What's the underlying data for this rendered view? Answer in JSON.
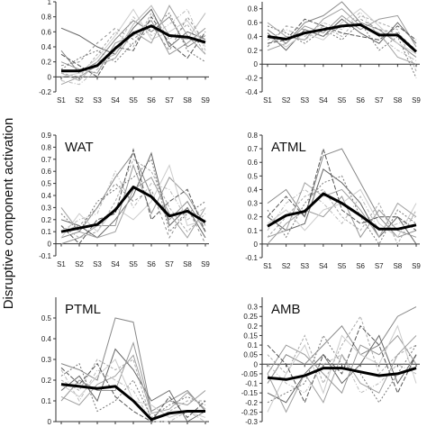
{
  "ylabel": "Disruptive component activation",
  "chart_data": [
    {
      "type": "line",
      "panel": "top-left",
      "title": "",
      "x": [
        "S1",
        "S2",
        "S3",
        "S4",
        "S5",
        "S6",
        "S7",
        "S8",
        "S9"
      ],
      "ylim": [
        -0.2,
        1.0
      ],
      "yticks": [
        "-0.2",
        "0",
        "0.2",
        "0.4",
        "0.6",
        "0.8",
        "1"
      ],
      "mean": [
        0.08,
        0.08,
        0.15,
        0.38,
        0.58,
        0.68,
        0.55,
        0.53,
        0.46
      ],
      "subjects": [
        [
          0.35,
          0.05,
          0.2,
          0.5,
          0.75,
          0.6,
          0.8,
          0.4,
          0.55
        ],
        [
          0.05,
          0.0,
          0.3,
          0.6,
          0.4,
          0.85,
          0.5,
          0.7,
          0.3
        ],
        [
          0.65,
          0.55,
          0.4,
          0.3,
          0.65,
          0.9,
          0.4,
          0.6,
          0.5
        ],
        [
          -0.05,
          -0.1,
          0.1,
          0.35,
          0.8,
          0.55,
          0.7,
          0.9,
          0.35
        ],
        [
          0.2,
          0.1,
          0.05,
          0.45,
          0.55,
          0.75,
          0.3,
          0.45,
          0.65
        ],
        [
          0.1,
          0.25,
          0.35,
          0.2,
          0.45,
          0.65,
          0.85,
          0.35,
          0.2
        ],
        [
          0.0,
          0.05,
          0.25,
          0.55,
          0.9,
          0.5,
          0.6,
          0.75,
          0.4
        ],
        [
          0.3,
          0.15,
          0.0,
          0.4,
          0.35,
          0.8,
          0.45,
          0.25,
          0.6
        ],
        [
          -0.1,
          0.0,
          0.15,
          0.25,
          0.6,
          0.45,
          0.95,
          0.55,
          0.3
        ],
        [
          0.15,
          0.2,
          0.45,
          0.65,
          0.5,
          0.7,
          0.35,
          0.8,
          0.45
        ],
        [
          0.05,
          -0.05,
          0.2,
          0.3,
          0.7,
          0.95,
          0.55,
          0.5,
          0.85
        ]
      ]
    },
    {
      "type": "line",
      "panel": "top-right",
      "title": "",
      "x": [
        "S1",
        "S2",
        "S3",
        "S4",
        "S5",
        "S6",
        "S7",
        "S8",
        "S9"
      ],
      "ylim": [
        -0.4,
        0.9
      ],
      "yticks": [
        "-0.4",
        "-0.2",
        "0",
        "0.2",
        "0.4",
        "0.6",
        "0.8"
      ],
      "mean": [
        0.4,
        0.36,
        0.45,
        0.5,
        0.55,
        0.57,
        0.42,
        0.42,
        0.18
      ],
      "subjects": [
        [
          0.5,
          0.3,
          0.6,
          0.7,
          0.9,
          0.6,
          0.5,
          0.3,
          0.1
        ],
        [
          0.3,
          0.4,
          0.35,
          0.55,
          0.4,
          0.7,
          0.6,
          0.5,
          -0.1
        ],
        [
          0.45,
          0.2,
          0.5,
          0.4,
          0.65,
          0.45,
          0.3,
          0.6,
          0.3
        ],
        [
          0.35,
          0.5,
          0.4,
          0.6,
          0.5,
          0.75,
          0.4,
          0.2,
          0.05
        ],
        [
          0.2,
          0.3,
          0.55,
          0.45,
          0.7,
          0.5,
          0.65,
          0.7,
          0.25
        ],
        [
          0.55,
          0.45,
          0.3,
          0.5,
          0.35,
          0.6,
          0.2,
          0.4,
          -0.2
        ],
        [
          0.4,
          0.25,
          0.45,
          0.35,
          0.6,
          0.8,
          0.55,
          0.3,
          0.15
        ],
        [
          0.3,
          0.35,
          0.65,
          0.55,
          0.45,
          0.4,
          0.35,
          0.55,
          0.35
        ],
        [
          0.6,
          0.4,
          0.35,
          0.65,
          0.8,
          0.55,
          0.45,
          0.1,
          0.0
        ],
        [
          0.25,
          0.55,
          0.5,
          0.4,
          0.55,
          0.65,
          0.5,
          0.45,
          0.2
        ]
      ]
    },
    {
      "type": "line",
      "panel": "middle-left",
      "title": "WAT",
      "x": [
        "S1",
        "S2",
        "S3",
        "S4",
        "S5",
        "S6",
        "S7",
        "S8",
        "S9"
      ],
      "ylim": [
        -0.1,
        0.9
      ],
      "yticks": [
        "-0.1",
        "0",
        "0.1",
        "0.2",
        "0.3",
        "0.4",
        "0.5",
        "0.6",
        "0.7",
        "0.8",
        "0.9"
      ],
      "mean": [
        0.1,
        0.13,
        0.16,
        0.28,
        0.47,
        0.39,
        0.23,
        0.27,
        0.18
      ],
      "subjects": [
        [
          0.05,
          0.1,
          0.3,
          0.55,
          0.75,
          0.4,
          0.2,
          0.35,
          0.1
        ],
        [
          0.15,
          0.05,
          0.1,
          0.35,
          0.7,
          0.6,
          0.3,
          0.1,
          0.25
        ],
        [
          0.2,
          0.15,
          0.05,
          0.2,
          0.4,
          0.75,
          0.15,
          0.3,
          0.05
        ],
        [
          0.1,
          0.2,
          0.25,
          0.6,
          0.3,
          0.5,
          0.45,
          0.2,
          0.3
        ],
        [
          0.0,
          0.05,
          0.15,
          0.15,
          0.65,
          0.25,
          0.55,
          0.4,
          0.15
        ],
        [
          0.25,
          0.1,
          0.35,
          0.45,
          0.55,
          0.7,
          0.1,
          0.25,
          0.35
        ],
        [
          0.05,
          0.25,
          0.1,
          0.3,
          0.2,
          0.35,
          0.65,
          0.15,
          0.2
        ],
        [
          0.15,
          0.0,
          0.2,
          0.25,
          0.78,
          0.2,
          0.35,
          0.45,
          0.1
        ],
        [
          0.3,
          0.1,
          0.05,
          0.1,
          0.45,
          0.55,
          0.25,
          0.05,
          0.3
        ],
        [
          0.1,
          0.15,
          0.3,
          0.5,
          0.35,
          0.45,
          0.05,
          0.3,
          0.0
        ]
      ]
    },
    {
      "type": "line",
      "panel": "middle-right",
      "title": "ATML",
      "x": [
        "S1",
        "S2",
        "S3",
        "S4",
        "S5",
        "S6",
        "S7",
        "S8",
        "S9"
      ],
      "ylim": [
        -0.1,
        0.8
      ],
      "yticks": [
        "-0.1",
        "0",
        "0.1",
        "0.2",
        "0.3",
        "0.4",
        "0.5",
        "0.6",
        "0.7",
        "0.8"
      ],
      "mean": [
        0.13,
        0.21,
        0.24,
        0.37,
        0.3,
        0.21,
        0.11,
        0.11,
        0.14
      ],
      "subjects": [
        [
          0.3,
          0.4,
          0.2,
          0.65,
          0.7,
          0.45,
          0.2,
          0.05,
          0.1
        ],
        [
          0.05,
          0.2,
          0.35,
          0.4,
          0.2,
          0.1,
          0.3,
          0.0,
          0.25
        ],
        [
          0.2,
          0.1,
          0.15,
          0.55,
          0.45,
          0.3,
          0.05,
          0.2,
          0.0
        ],
        [
          0.1,
          0.3,
          0.4,
          0.3,
          0.15,
          0.35,
          0.1,
          0.15,
          0.2
        ],
        [
          0.0,
          0.15,
          0.25,
          0.2,
          0.35,
          0.05,
          0.25,
          0.1,
          0.05
        ],
        [
          0.25,
          0.05,
          0.3,
          0.45,
          0.5,
          0.2,
          0.0,
          0.25,
          0.15
        ],
        [
          0.15,
          0.25,
          0.1,
          0.25,
          0.3,
          0.4,
          0.15,
          0.05,
          0.3
        ],
        [
          0.2,
          0.35,
          0.2,
          0.7,
          0.25,
          0.15,
          0.2,
          0.2,
          0.1
        ],
        [
          0.05,
          0.1,
          0.45,
          0.35,
          0.4,
          0.25,
          0.05,
          0.3,
          0.2
        ]
      ]
    },
    {
      "type": "line",
      "panel": "bottom-left",
      "title": "PTML",
      "x": [
        "S1",
        "S2",
        "S3",
        "S4",
        "S5",
        "S6",
        "S7",
        "S8",
        "S9"
      ],
      "ylim": [
        0,
        0.6
      ],
      "yticks": [
        "0",
        "0.1",
        "0.2",
        "0.3",
        "0.4",
        "0.5"
      ],
      "mean": [
        0.18,
        0.17,
        0.16,
        0.17,
        0.1,
        0.01,
        0.04,
        0.05,
        0.05
      ],
      "subjects": [
        [
          0.28,
          0.25,
          0.2,
          0.5,
          0.48,
          0.05,
          0.1,
          0.15,
          0.05
        ],
        [
          0.2,
          0.15,
          0.3,
          0.25,
          0.3,
          0.0,
          0.05,
          0.1,
          0.1
        ],
        [
          0.15,
          0.22,
          0.1,
          0.35,
          0.25,
          0.1,
          0.15,
          0.0,
          0.05
        ],
        [
          0.25,
          0.1,
          0.25,
          0.2,
          0.15,
          0.0,
          0.0,
          0.05,
          0.0
        ],
        [
          0.1,
          0.2,
          0.15,
          0.15,
          0.38,
          0.05,
          0.1,
          0.08,
          0.15
        ],
        [
          0.22,
          0.28,
          0.05,
          0.1,
          0.2,
          0.02,
          0.08,
          0.12,
          0.08
        ],
        [
          0.18,
          0.12,
          0.22,
          0.3,
          0.1,
          0.08,
          0.02,
          0.05,
          0.02
        ],
        [
          0.26,
          0.18,
          0.28,
          0.12,
          0.05,
          0.0,
          0.12,
          0.02,
          0.1
        ],
        [
          0.12,
          0.08,
          0.18,
          0.22,
          0.32,
          0.04,
          0.06,
          0.14,
          0.06
        ]
      ]
    },
    {
      "type": "line",
      "panel": "bottom-right",
      "title": "AMB",
      "x": [
        "S1",
        "S2",
        "S3",
        "S4",
        "S5",
        "S6",
        "S7",
        "S8",
        "S9"
      ],
      "ylim": [
        -0.3,
        0.35
      ],
      "yticks": [
        "-0.3",
        "-0.25",
        "-0.2",
        "-0.15",
        "-0.1",
        "-0.05",
        "0",
        "0.05",
        "0.1",
        "0.15",
        "0.2",
        "0.25",
        "0.3"
      ],
      "mean": [
        -0.07,
        -0.08,
        -0.06,
        -0.02,
        -0.02,
        -0.04,
        -0.06,
        -0.05,
        -0.02
      ],
      "subjects": [
        [
          -0.1,
          0.05,
          0.0,
          0.1,
          0.2,
          0.05,
          0.1,
          0.25,
          0.3
        ],
        [
          0.05,
          -0.05,
          0.15,
          -0.1,
          0.1,
          0.25,
          -0.05,
          0.05,
          0.1
        ],
        [
          -0.15,
          -0.2,
          -0.05,
          0.05,
          -0.1,
          0.0,
          0.15,
          -0.1,
          0.05
        ],
        [
          0.0,
          -0.1,
          -0.15,
          0.0,
          0.05,
          -0.15,
          -0.1,
          0.0,
          -0.05
        ],
        [
          -0.05,
          0.1,
          0.05,
          -0.05,
          -0.15,
          0.1,
          0.05,
          0.15,
          0.0
        ],
        [
          -0.2,
          -0.15,
          -0.1,
          0.15,
          0.0,
          -0.05,
          -0.2,
          -0.05,
          0.1
        ],
        [
          -0.25,
          -0.05,
          0.1,
          -0.15,
          0.15,
          0.05,
          0.0,
          0.2,
          -0.1
        ],
        [
          0.1,
          0.0,
          -0.2,
          0.05,
          -0.05,
          0.2,
          0.1,
          -0.15,
          0.05
        ],
        [
          -0.05,
          -0.25,
          -0.05,
          -0.2,
          0.05,
          -0.1,
          -0.15,
          0.05,
          0.15
        ]
      ]
    }
  ]
}
